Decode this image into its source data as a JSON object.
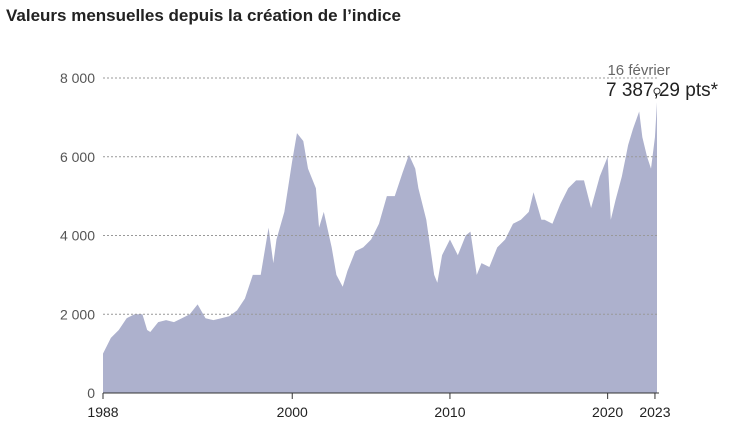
{
  "chart_data": {
    "type": "area",
    "title": "Valeurs mensuelles depuis la création de l’indice",
    "color": "#adb1cd",
    "x": [
      1988.0,
      1988.5,
      1989.0,
      1989.5,
      1990.0,
      1990.5,
      1990.8,
      1991.0,
      1991.5,
      1992.0,
      1992.5,
      1993.0,
      1993.5,
      1994.0,
      1994.5,
      1995.0,
      1995.5,
      1996.0,
      1996.5,
      1997.0,
      1997.5,
      1998.0,
      1998.5,
      1998.8,
      1999.0,
      1999.5,
      2000.0,
      2000.3,
      2000.7,
      2001.0,
      2001.5,
      2001.7,
      2002.0,
      2002.5,
      2002.8,
      2003.2,
      2003.5,
      2004.0,
      2004.5,
      2005.0,
      2005.5,
      2006.0,
      2006.5,
      2007.0,
      2007.4,
      2007.8,
      2008.0,
      2008.5,
      2009.0,
      2009.2,
      2009.5,
      2010.0,
      2010.5,
      2011.0,
      2011.3,
      2011.7,
      2012.0,
      2012.5,
      2013.0,
      2013.5,
      2014.0,
      2014.5,
      2015.0,
      2015.3,
      2015.8,
      2016.0,
      2016.5,
      2017.0,
      2017.5,
      2018.0,
      2018.5,
      2018.95,
      2019.5,
      2020.0,
      2020.2,
      2020.5,
      2020.9,
      2021.3,
      2021.6,
      2022.0,
      2022.2,
      2022.5,
      2022.75,
      2023.0,
      2023.13
    ],
    "values": [
      1000,
      1400,
      1600,
      1900,
      2000,
      2000,
      1600,
      1550,
      1800,
      1850,
      1800,
      1900,
      2000,
      2250,
      1900,
      1850,
      1900,
      1950,
      2100,
      2400,
      3000,
      3000,
      4200,
      3300,
      3900,
      4600,
      5900,
      6600,
      6400,
      5700,
      5200,
      4200,
      4600,
      3700,
      3000,
      2700,
      3100,
      3600,
      3700,
      3900,
      4300,
      5000,
      5000,
      5600,
      6050,
      5700,
      5200,
      4400,
      3000,
      2800,
      3500,
      3900,
      3500,
      4000,
      4100,
      3000,
      3300,
      3200,
      3700,
      3900,
      4300,
      4400,
      4600,
      5100,
      4400,
      4400,
      4300,
      4800,
      5200,
      5400,
      5400,
      4700,
      5500,
      6000,
      4400,
      4900,
      5500,
      6300,
      6700,
      7150,
      6500,
      6000,
      5700,
      6500,
      7387.29
    ],
    "xlim": [
      1988,
      2023.13
    ],
    "xticks": [
      1988,
      2000,
      2010,
      2020,
      2023
    ],
    "ylim": [
      0,
      8000
    ],
    "yticks": [
      0,
      {
        "value": 2000,
        "label": "2 000"
      },
      {
        "value": 4000,
        "label": "4 000"
      },
      {
        "value": 6000,
        "label": "6 000"
      },
      {
        "value": 8000,
        "label": "8 000"
      }
    ],
    "grid": true,
    "annotation": {
      "date_label": "16 février",
      "label": "7 387,29 pts*",
      "x": 2023.13,
      "value": 7387.29
    }
  }
}
